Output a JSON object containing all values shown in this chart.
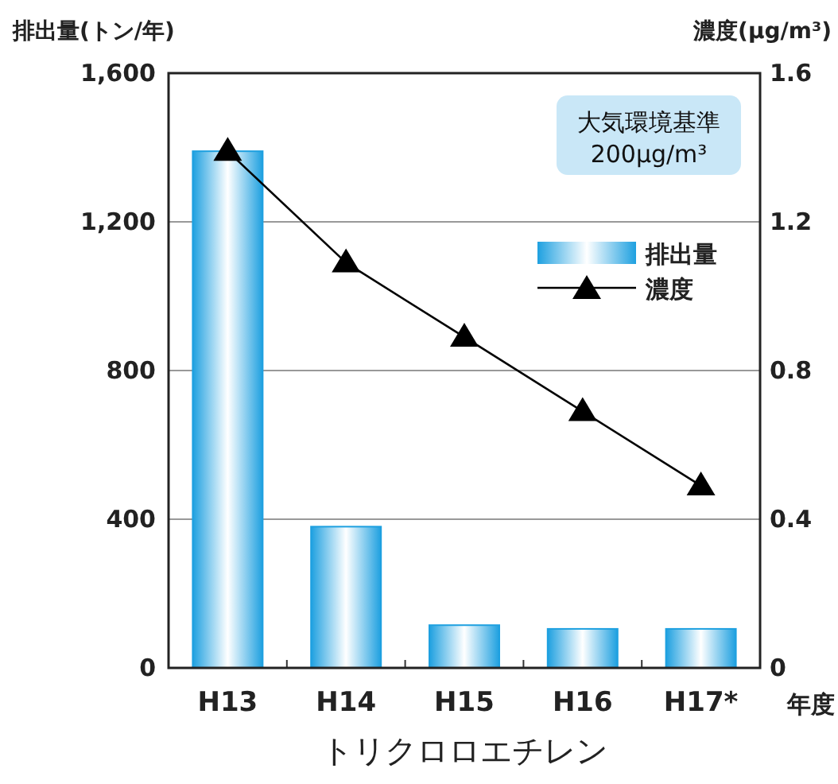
{
  "chart_data": {
    "type": "bar",
    "title": "トリクロロエチレン",
    "xlabel": "年度",
    "ylabel": "排出量(トン/年)",
    "y2label": "濃度(μg/m³)",
    "annotations": [
      "大気環境基準\n200μg/m³"
    ],
    "categories": [
      "H13",
      "H14",
      "H15",
      "H16",
      "H17*"
    ],
    "series": [
      {
        "name": "排出量",
        "color": "#1ea0e0",
        "values": [
          1390,
          380,
          115,
          105,
          105
        ]
      },
      {
        "name": "濃度",
        "type": "line",
        "axis": "y2",
        "color": "#000000",
        "marker": "triangle",
        "values": [
          1.39,
          1.09,
          0.89,
          0.69,
          0.49
        ]
      }
    ],
    "ylim": [
      0,
      1600
    ],
    "yticks": [
      0,
      {
        "value": 400,
        "label": "400"
      },
      {
        "value": 800,
        "label": "800"
      },
      {
        "value": 1200,
        "label": "1,200"
      },
      {
        "value": 1600,
        "label": "1,600"
      }
    ],
    "y2lim": [
      0,
      1.6
    ],
    "y2ticks": [
      0,
      0.4,
      0.8,
      1.2,
      1.6
    ],
    "grid": "y",
    "legend": "top right"
  }
}
